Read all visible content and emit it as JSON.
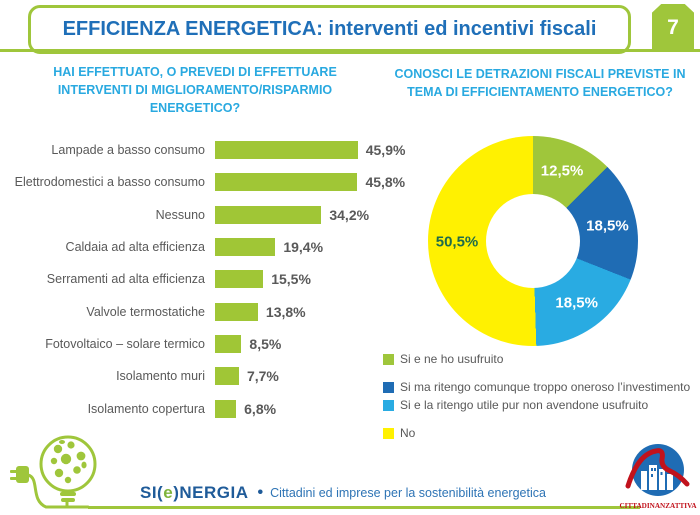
{
  "header": {
    "title": "EFFICIENZA ENERGETICA: interventi ed incentivi fiscali",
    "page_number": "7"
  },
  "questions": {
    "left": "HAI EFFETTUATO, O PREVEDI DI EFFETTUARE INTERVENTI DI MIGLIORAMENTO/RISPARMIO ENERGETICO?",
    "right": "CONOSCI LE DETRAZIONI FISCALI PREVISTE IN TEMA DI EFFICIENTAMENTO ENERGETICO?"
  },
  "chart_data": [
    {
      "type": "bar",
      "orientation": "horizontal",
      "title": "HAI EFFETTUATO, O PREVEDI DI EFFETTUARE INTERVENTI DI MIGLIORAMENTO/RISPARMIO ENERGETICO?",
      "categories": [
        "Lampade a basso consumo",
        "Elettrodomestici a basso consumo",
        "Nessuno",
        "Caldaia ad alta efficienza",
        "Serramenti ad alta efficienza",
        "Valvole termostatiche",
        "Fotovoltaico – solare termico",
        "Isolamento muri",
        "Isolamento copertura"
      ],
      "values": [
        45.9,
        45.8,
        34.2,
        19.4,
        15.5,
        13.8,
        8.5,
        7.7,
        6.8
      ],
      "value_labels": [
        "45,9%",
        "45,8%",
        "34,2%",
        "19,4%",
        "15,5%",
        "13,8%",
        "8,5%",
        "7,7%",
        "6,8%"
      ],
      "bar_color": "#A0C636",
      "xlim": [
        0,
        50
      ],
      "grid": false
    },
    {
      "type": "pie",
      "donut": true,
      "title": "CONOSCI LE DETRAZIONI FISCALI PREVISTE IN TEMA DI EFFICIENTAMENTO ENERGETICO?",
      "start_angle_deg": 0,
      "direction": "clockwise",
      "legend_position": "bottom-left",
      "slices": [
        {
          "label": "Si e ne ho usufruito",
          "value": 12.5,
          "display": "12,5%",
          "color": "#9FC63B",
          "label_color": "#FFFFFF"
        },
        {
          "label": "Si ma ritengo comunque troppo oneroso l’investimento",
          "value": 18.5,
          "display": "18,5%",
          "color": "#1F6CB4",
          "label_color": "#FFFFFF"
        },
        {
          "label": "Si e la ritengo utile pur non avendone usufruito",
          "value": 18.5,
          "display": "18,5%",
          "color": "#29ABE2",
          "label_color": "#FFFFFF"
        },
        {
          "label": "No",
          "value": 50.5,
          "display": "50,5%",
          "color": "#FFF101",
          "label_color": "#1E6B4A"
        }
      ]
    }
  ],
  "footer": {
    "brand_si": "SI(",
    "brand_e": "e",
    "brand_rest": ")NERGIA",
    "bullet": "•",
    "tagline": "Cittadini ed imprese per la sostenibilità energetica",
    "logo_right_text": "CITTADINANZATTIVA"
  },
  "colors": {
    "accent_green": "#9FC63B",
    "title_blue": "#1F6FB8",
    "question_blue": "#29A9E0",
    "dark_blue": "#1F6CB4",
    "light_blue": "#29ABE2",
    "yellow": "#FFF101",
    "text_gray": "#595959",
    "footer_navy": "#1F5B99",
    "footer_blue": "#2E74B5",
    "logo_red": "#C1121C"
  }
}
